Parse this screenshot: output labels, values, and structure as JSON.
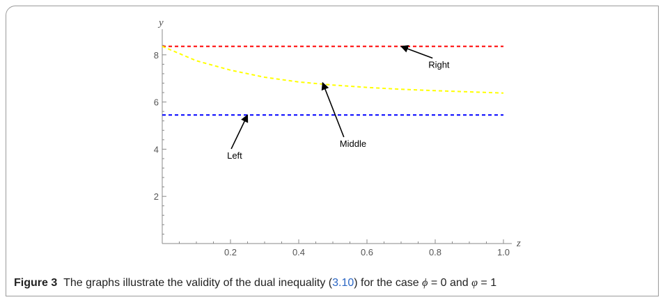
{
  "chart_data": {
    "type": "line",
    "xlabel": "z",
    "ylabel": "y",
    "xlim": [
      0,
      1
    ],
    "ylim": [
      0,
      8.4
    ],
    "xticks": [
      0.2,
      0.4,
      0.6,
      0.8,
      1.0
    ],
    "xtick_labels": [
      "0.2",
      "0.4",
      "0.6",
      "0.8",
      "1.0"
    ],
    "yticks": [
      2,
      4,
      6,
      8
    ],
    "ytick_labels": [
      "2",
      "4",
      "6",
      "8"
    ],
    "grid": false,
    "series": [
      {
        "name": "Right",
        "color": "#ff0000",
        "style": "dashed",
        "x": [
          0,
          1
        ],
        "y": [
          8.36,
          8.36
        ]
      },
      {
        "name": "Middle",
        "color": "#ffff00",
        "style": "dashed",
        "x": [
          0,
          0.1,
          0.2,
          0.3,
          0.4,
          0.5,
          0.6,
          0.7,
          0.8,
          0.9,
          1.0
        ],
        "y": [
          8.36,
          7.75,
          7.35,
          7.05,
          6.85,
          6.72,
          6.62,
          6.54,
          6.48,
          6.43,
          6.38
        ]
      },
      {
        "name": "Left",
        "color": "#0000ff",
        "style": "dashed",
        "x": [
          0,
          1
        ],
        "y": [
          5.45,
          5.45
        ]
      }
    ],
    "annotations": [
      {
        "text": "Right",
        "arrow_to": [
          0.7,
          8.36
        ],
        "text_at": [
          0.78,
          7.45
        ]
      },
      {
        "text": "Middle",
        "arrow_to": [
          0.47,
          6.82
        ],
        "text_at": [
          0.52,
          4.1
        ]
      },
      {
        "text": "Left",
        "arrow_to": [
          0.25,
          5.45
        ],
        "text_at": [
          0.19,
          3.6
        ]
      }
    ]
  },
  "caption": {
    "label": "Figure 3",
    "text_before_ref": "The graphs illustrate the validity of the dual inequality (",
    "ref": "3.10",
    "text_after_ref": ") for the case ",
    "symbol_phi": "ϕ",
    "equals_zero": " = 0 and ",
    "symbol_varphi": "φ",
    "equals_one": " = 1"
  }
}
